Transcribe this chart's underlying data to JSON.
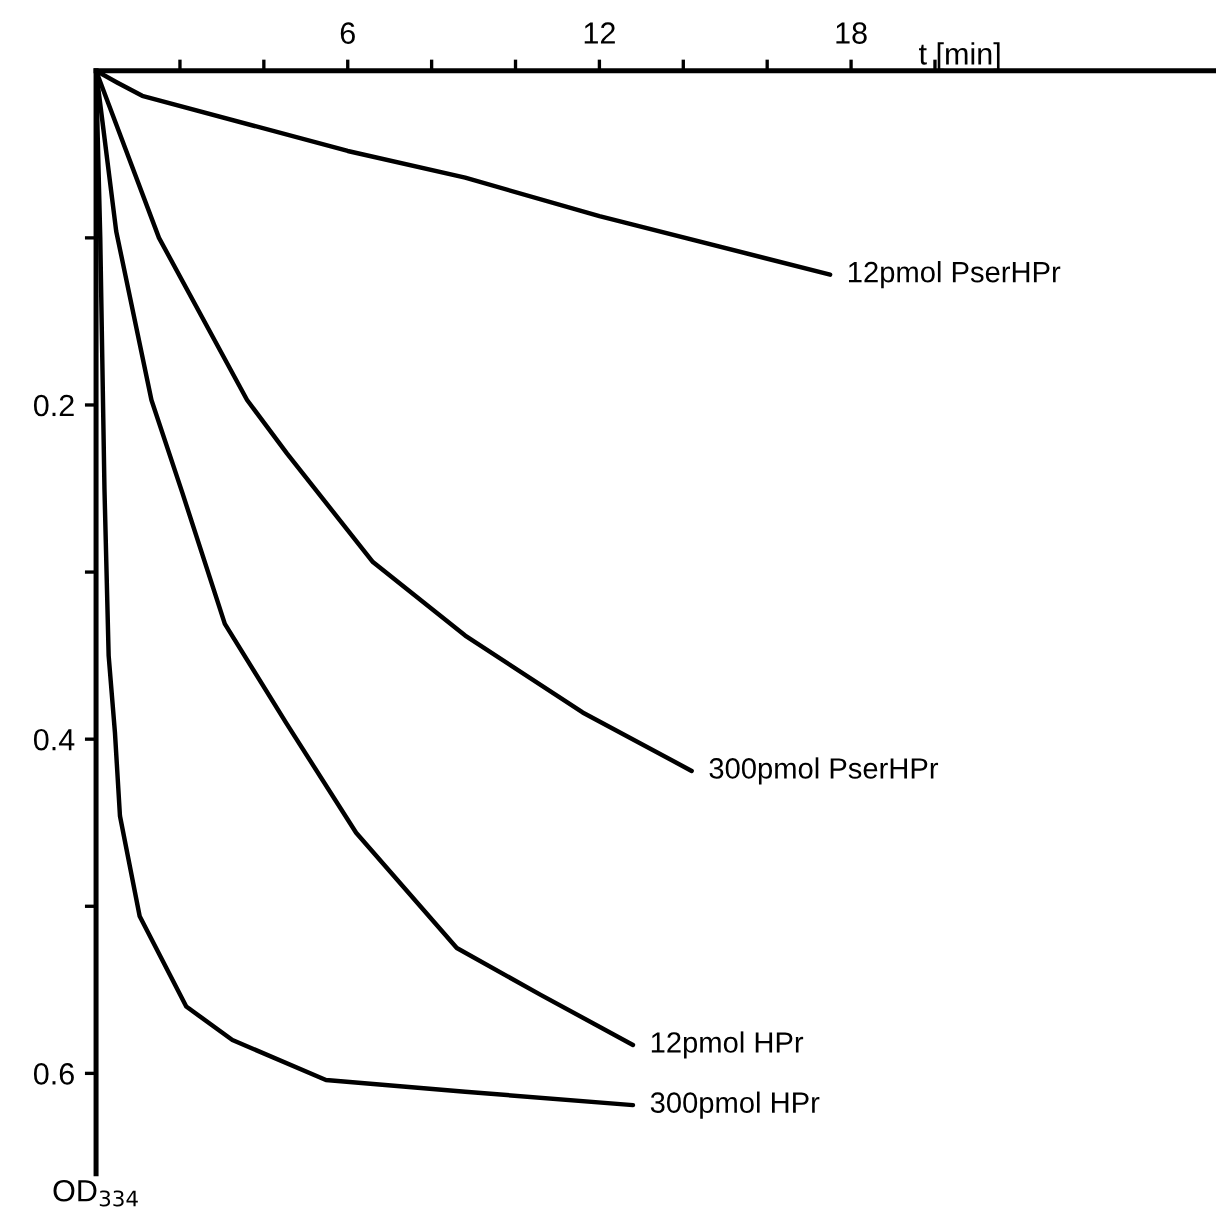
{
  "chart_data": {
    "type": "line",
    "xlabel": "t [min]",
    "ylabel": "OD$_{334}$",
    "xlim": [
      0,
      26.7
    ],
    "ylim": [
      0.66,
      0
    ],
    "xticks": [
      {
        "value": 2,
        "label": null
      },
      {
        "value": 4,
        "label": null
      },
      6,
      {
        "value": 8,
        "label": null
      },
      {
        "value": 10,
        "label": null
      },
      12,
      {
        "value": 14,
        "label": null
      },
      {
        "value": 16,
        "label": null
      },
      18,
      {
        "value": 20,
        "label": null
      }
    ],
    "yticks": [
      {
        "value": 0.1,
        "label": null
      },
      0.2,
      {
        "value": 0.3,
        "label": null
      },
      0.4,
      {
        "value": 0.5,
        "label": null
      },
      0.6
    ],
    "grid": false,
    "legend": false,
    "marker": "none",
    "line_style": "solid",
    "series": [
      {
        "name": "12pmol PserHPr",
        "color": "#000000",
        "x": [
          0,
          0.5,
          1.1,
          6,
          8.8,
          12,
          17.5
        ],
        "values": [
          0,
          0.007,
          0.015,
          0.048,
          0.064,
          0.087,
          0.122
        ]
      },
      {
        "name": "300pmol PserHPr",
        "color": "#000000",
        "x": [
          0,
          0.3,
          1.5,
          3.6,
          4.55,
          6.6,
          8.8,
          11.6,
          14.2
        ],
        "values": [
          0,
          0.02,
          0.1,
          0.197,
          0.229,
          0.294,
          0.338,
          0.384,
          0.419
        ]
      },
      {
        "name": "12pmol HPr",
        "color": "#000000",
        "x": [
          0,
          0.15,
          0.48,
          1.32,
          2.05,
          3.07,
          4.55,
          6.2,
          8.6,
          10.6,
          12.8
        ],
        "values": [
          0,
          0.03,
          0.096,
          0.197,
          0.252,
          0.331,
          0.391,
          0.456,
          0.525,
          0.553,
          0.583
        ]
      },
      {
        "name": "300pmol HPr",
        "color": "#000000",
        "x": [
          0,
          0.1,
          0.2,
          0.3,
          0.45,
          0.57,
          1.04,
          2.15,
          3.25,
          5.48,
          8.8,
          12.8
        ],
        "values": [
          0,
          0.1,
          0.25,
          0.35,
          0.396,
          0.446,
          0.506,
          0.56,
          0.58,
          0.604,
          0.611,
          0.619
        ]
      }
    ]
  }
}
